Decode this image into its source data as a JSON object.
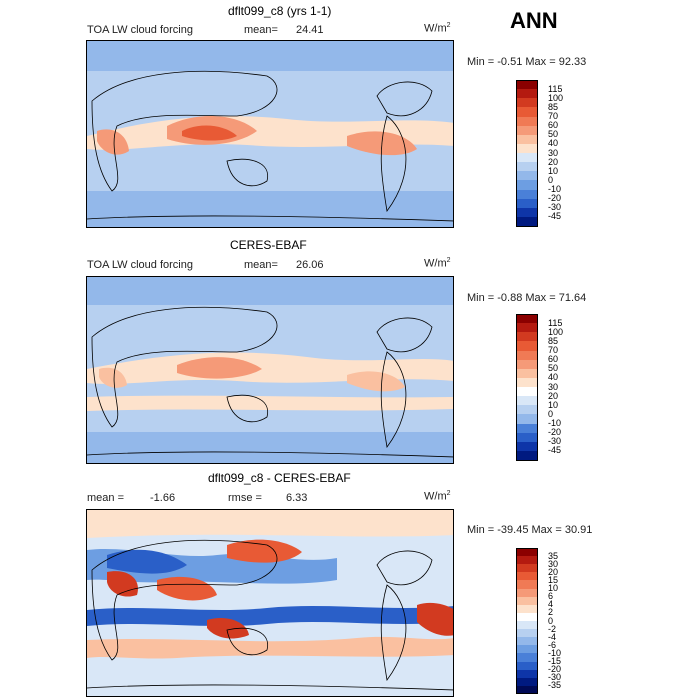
{
  "header": {
    "season": "ANN"
  },
  "panels": [
    {
      "title": "dflt099_c8 (yrs 1-1)",
      "left_label": "TOA LW cloud forcing",
      "stat_label": "mean=",
      "stat_value": "24.41",
      "units": "W/m",
      "units_sup": "2",
      "minmax": "Min =  -0.51 Max =  92.33",
      "colorbar": {
        "labels": [
          "115",
          "100",
          "85",
          "70",
          "60",
          "50",
          "40",
          "30",
          "20",
          "10",
          "0",
          "-10",
          "-20",
          "-30",
          "-45"
        ],
        "colors": [
          "#8b0000",
          "#b41a10",
          "#d23a20",
          "#e85a35",
          "#f07a55",
          "#f59a78",
          "#fac0a0",
          "#fde2cc",
          "#d9e7f7",
          "#b7d0f0",
          "#93b8ea",
          "#6d9ee2",
          "#4a80d8",
          "#2a5fc8",
          "#0e35a8",
          "#001a80"
        ]
      }
    },
    {
      "title": "CERES-EBAF",
      "left_label": "TOA LW cloud forcing",
      "stat_label": "mean=",
      "stat_value": "26.06",
      "units": "W/m",
      "units_sup": "2",
      "minmax": "Min =  -0.88 Max =  71.64",
      "colorbar": {
        "labels": [
          "115",
          "100",
          "85",
          "70",
          "60",
          "50",
          "40",
          "30",
          "20",
          "10",
          "0",
          "-10",
          "-20",
          "-30",
          "-45"
        ],
        "colors": [
          "#8b0000",
          "#b41a10",
          "#d23a20",
          "#e85a35",
          "#f07a55",
          "#f59a78",
          "#fac0a0",
          "#fde2cc",
          "#ffffff",
          "#d9e7f7",
          "#b7d0f0",
          "#93b8ea",
          "#4a80d8",
          "#2a5fc8",
          "#0e35a8",
          "#001a80"
        ]
      }
    },
    {
      "title": "dflt099_c8 - CERES-EBAF",
      "left_label": "mean =",
      "left_value": "-1.66",
      "stat_label": "rmse =",
      "stat_value": "6.33",
      "units": "W/m",
      "units_sup": "2",
      "minmax": "Min = -39.45 Max =  30.91",
      "colorbar": {
        "labels": [
          "35",
          "30",
          "20",
          "15",
          "10",
          "6",
          "4",
          "2",
          "0",
          "-2",
          "-4",
          "-6",
          "-10",
          "-15",
          "-20",
          "-30",
          "-35"
        ],
        "colors": [
          "#8b0000",
          "#b41a10",
          "#d23a20",
          "#e85a35",
          "#f07a55",
          "#f59a78",
          "#fac0a0",
          "#fde2cc",
          "#ffffff",
          "#d9e7f7",
          "#b7d0f0",
          "#93b8ea",
          "#6d9ee2",
          "#4a80d8",
          "#2a5fc8",
          "#0e35a8",
          "#001a80",
          "#000a55"
        ]
      }
    }
  ]
}
